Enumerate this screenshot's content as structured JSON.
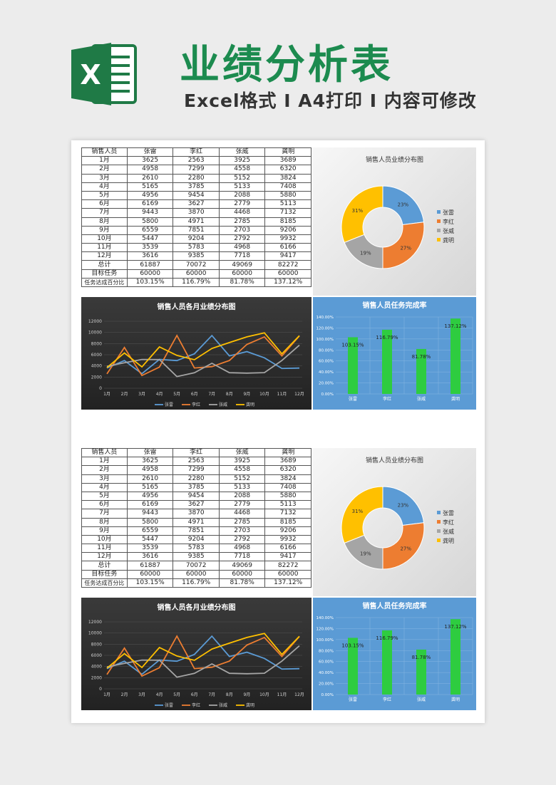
{
  "header": {
    "title": "业绩分析表",
    "subtitle": "Excel格式 I A4打印 I 内容可修改",
    "logo_letter": "X"
  },
  "table": {
    "headers": [
      "销售人员",
      "张雷",
      "李红",
      "张威",
      "龚明"
    ],
    "rows": [
      [
        "1月",
        "3625",
        "2563",
        "3925",
        "3689"
      ],
      [
        "2月",
        "4958",
        "7299",
        "4558",
        "6320"
      ],
      [
        "3月",
        "2610",
        "2280",
        "5152",
        "3824"
      ],
      [
        "4月",
        "5165",
        "3785",
        "5133",
        "7408"
      ],
      [
        "5月",
        "4956",
        "9454",
        "2088",
        "5880"
      ],
      [
        "6月",
        "6169",
        "3627",
        "2779",
        "5113"
      ],
      [
        "7月",
        "9443",
        "3870",
        "4468",
        "7132"
      ],
      [
        "8月",
        "5800",
        "4971",
        "2785",
        "8185"
      ],
      [
        "9月",
        "6559",
        "7851",
        "2703",
        "9206"
      ],
      [
        "10月",
        "5447",
        "9204",
        "2792",
        "9932"
      ],
      [
        "11月",
        "3539",
        "5783",
        "4968",
        "6166"
      ],
      [
        "12月",
        "3616",
        "9385",
        "7718",
        "9417"
      ],
      [
        "总计",
        "61887",
        "70072",
        "49069",
        "82272"
      ],
      [
        "目标任务",
        "60000",
        "60000",
        "60000",
        "60000"
      ],
      [
        "任务达成百分比",
        "103.15%",
        "116.79%",
        "81.78%",
        "137.12%"
      ]
    ]
  },
  "donut": {
    "title": "销售人员业绩分布图",
    "slices": [
      {
        "name": "张雷",
        "value": 23,
        "label": "23%",
        "color": "#5b9bd5"
      },
      {
        "name": "李红",
        "value": 27,
        "label": "27%",
        "color": "#ed7d31"
      },
      {
        "name": "张威",
        "value": 19,
        "label": "19%",
        "color": "#a5a5a5"
      },
      {
        "name": "龚明",
        "value": 31,
        "label": "31%",
        "color": "#ffc000"
      }
    ]
  },
  "chart_data": [
    {
      "type": "line",
      "title": "销售人员各月业绩分布图",
      "categories": [
        "1月",
        "2月",
        "3月",
        "4月",
        "5月",
        "6月",
        "7月",
        "8月",
        "9月",
        "10月",
        "11月",
        "12月"
      ],
      "ylim": [
        0,
        12000
      ],
      "yticks": [
        "0",
        "2000",
        "4000",
        "6000",
        "8000",
        "10000",
        "12000"
      ],
      "legend": "bottom",
      "series": [
        {
          "name": "张雷",
          "color": "#5b9bd5",
          "values": [
            3625,
            4958,
            2610,
            5165,
            4956,
            6169,
            9443,
            5800,
            6559,
            5447,
            3539,
            3616
          ]
        },
        {
          "name": "李红",
          "color": "#ed7d31",
          "values": [
            2563,
            7299,
            2280,
            3785,
            9454,
            3627,
            3870,
            4971,
            7851,
            9204,
            5783,
            9385
          ]
        },
        {
          "name": "张威",
          "color": "#a5a5a5",
          "values": [
            3925,
            4558,
            5152,
            5133,
            2088,
            2779,
            4468,
            2785,
            2703,
            2792,
            4968,
            7718
          ]
        },
        {
          "name": "龚明",
          "color": "#ffc000",
          "values": [
            3689,
            6320,
            3824,
            7408,
            5880,
            5113,
            7132,
            8185,
            9206,
            9932,
            6166,
            9417
          ]
        }
      ]
    },
    {
      "type": "bar",
      "title": "销售人员任务完成率",
      "categories": [
        "张雷",
        "李红",
        "张威",
        "龚明"
      ],
      "values": [
        103.15,
        116.79,
        81.78,
        137.12
      ],
      "labels": [
        "103.15%",
        "116.79%",
        "81.78%",
        "137.12%"
      ],
      "ylim": [
        0,
        140
      ],
      "yticks": [
        "0.00%",
        "20.00%",
        "40.00%",
        "60.00%",
        "80.00%",
        "100.00%",
        "120.00%",
        "140.00%"
      ],
      "bar_color": "#2ecc40"
    }
  ]
}
